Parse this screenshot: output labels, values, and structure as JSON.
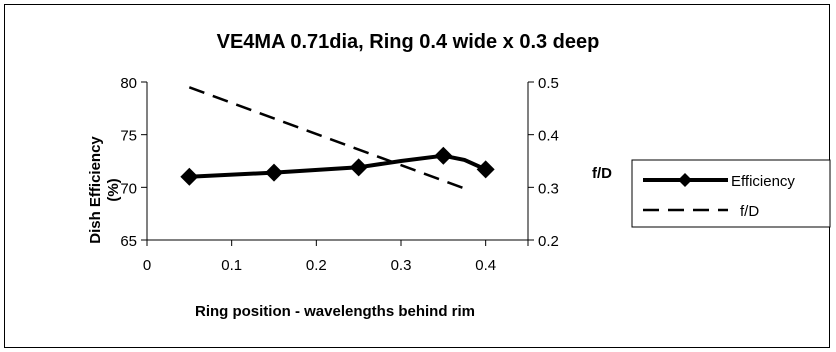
{
  "chart_data": {
    "type": "line",
    "title": "VE4MA 0.71dia, Ring 0.4 wide x 0.3 deep",
    "xlabel": "Ring position - wavelengths behind rim",
    "ylabel_left": "Dish Efficiency (%)",
    "ylabel_left_lines": [
      "Dish Efficiency",
      "(%)"
    ],
    "ylabel_right": "f/D",
    "xlim": [
      0,
      0.45
    ],
    "xticks": [
      0,
      0.1,
      0.2,
      0.3,
      0.4
    ],
    "xtick_labels": [
      "0",
      "0.1",
      "0.2",
      "0.3",
      "0.4"
    ],
    "ylim_left": [
      65,
      80
    ],
    "yticks_left": [
      65,
      70,
      75,
      80
    ],
    "ytick_labels_left": [
      "65",
      "70",
      "75",
      "80"
    ],
    "ylim_right": [
      0.2,
      0.5
    ],
    "yticks_right": [
      0.2,
      0.3,
      0.4,
      0.5
    ],
    "ytick_labels_right": [
      "0.2",
      "0.3",
      "0.4",
      "0.5"
    ],
    "grid": false,
    "legend_position": "right",
    "series": [
      {
        "name": "Efficiency",
        "axis": "left",
        "style": "solid-diamond",
        "color": "#000000",
        "x": [
          0.05,
          0.15,
          0.25,
          0.3,
          0.35,
          0.375,
          0.4
        ],
        "y": [
          71,
          71.4,
          71.9,
          72.5,
          73,
          72.6,
          71.7
        ],
        "marker_x": [
          0.05,
          0.15,
          0.25,
          0.35,
          0.4
        ],
        "marker_y": [
          71,
          71.4,
          71.9,
          73,
          71.7
        ]
      },
      {
        "name": "f/D",
        "axis": "right",
        "style": "dashed",
        "color": "#000000",
        "x": [
          0.05,
          0.38
        ],
        "y": [
          0.49,
          0.295
        ]
      }
    ]
  }
}
